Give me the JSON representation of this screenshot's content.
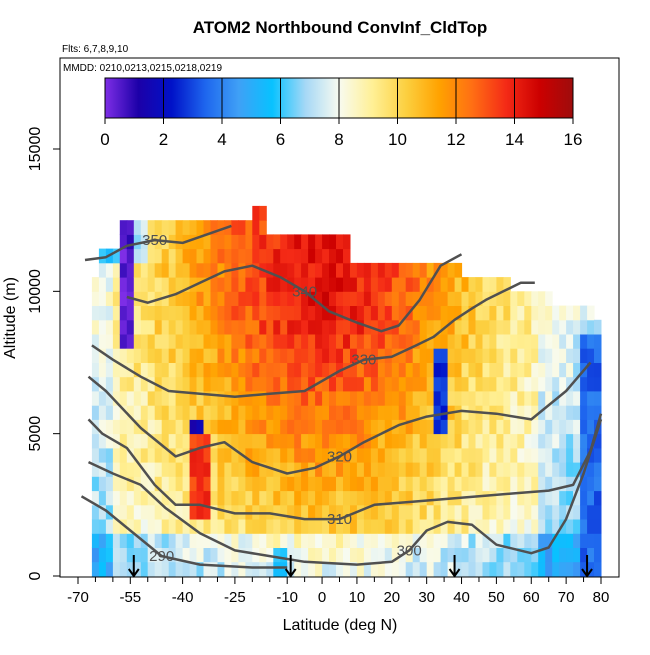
{
  "chart_data": {
    "type": "heatmap",
    "title": "ATOM2 Northbound ConvInf_CldTop",
    "info_lines": [
      "Flts: 6,7,8,9,10",
      "MMDD: 0210,0213,0215,0218,0219"
    ],
    "xlabel": "Latitude (deg N)",
    "ylabel": "Altitude (m)",
    "xlim": [
      -70,
      80
    ],
    "ylim": [
      0,
      17000
    ],
    "x_ticks": [
      -70,
      -55,
      -40,
      -25,
      -10,
      0,
      10,
      20,
      30,
      40,
      50,
      60,
      70,
      80
    ],
    "y_ticks": [
      0,
      5000,
      10000,
      15000
    ],
    "colorbar": {
      "range": [
        0,
        16
      ],
      "ticks": [
        0,
        2,
        4,
        6,
        8,
        10,
        12,
        14,
        16
      ],
      "colors": [
        "#7e2ee6",
        "#1c00a8",
        "#0012c8",
        "#1e66ee",
        "#3fa0f6",
        "#08c2ff",
        "#a6d8f6",
        "#f8fbf0",
        "#fff096",
        "#fcd040",
        "#ffa200",
        "#ff6e14",
        "#f42a16",
        "#cc0000",
        "#9e0c0c"
      ]
    },
    "grid": false,
    "legend": "none",
    "flight_profile_arrows_lat": [
      -54,
      -9,
      38,
      76
    ],
    "contours": [
      {
        "label": "290",
        "points": [
          [
            -69,
            2800
          ],
          [
            -62,
            2300
          ],
          [
            -55,
            1600
          ],
          [
            -46,
            700
          ],
          [
            -35,
            400
          ],
          [
            -20,
            300
          ],
          [
            -10,
            300
          ]
        ]
      },
      {
        "label": "300",
        "points": [
          [
            -67,
            4000
          ],
          [
            -60,
            3600
          ],
          [
            -52,
            3200
          ],
          [
            -45,
            2400
          ],
          [
            -35,
            1500
          ],
          [
            -25,
            900
          ],
          [
            -15,
            700
          ],
          [
            -5,
            500
          ],
          [
            10,
            400
          ],
          [
            20,
            500
          ],
          [
            25,
            900
          ],
          [
            30,
            1600
          ],
          [
            36,
            1900
          ],
          [
            43,
            1800
          ],
          [
            50,
            1100
          ],
          [
            60,
            800
          ],
          [
            65,
            1000
          ],
          [
            70,
            2000
          ],
          [
            75,
            3600
          ],
          [
            80,
            5500
          ]
        ]
      },
      {
        "label": "310",
        "points": [
          [
            -67,
            5500
          ],
          [
            -63,
            5000
          ],
          [
            -56,
            4500
          ],
          [
            -48,
            3200
          ],
          [
            -42,
            2500
          ],
          [
            -35,
            2500
          ],
          [
            -25,
            2200
          ],
          [
            -15,
            2200
          ],
          [
            -5,
            2000
          ],
          [
            5,
            2000
          ],
          [
            15,
            2500
          ],
          [
            25,
            2600
          ],
          [
            35,
            2700
          ],
          [
            45,
            2800
          ],
          [
            55,
            2900
          ],
          [
            65,
            3000
          ],
          [
            72,
            3200
          ],
          [
            77,
            4400
          ],
          [
            80,
            5700
          ]
        ]
      },
      {
        "label": "320",
        "points": [
          [
            -67,
            7000
          ],
          [
            -62,
            6500
          ],
          [
            -52,
            5200
          ],
          [
            -42,
            4200
          ],
          [
            -35,
            4500
          ],
          [
            -28,
            4700
          ],
          [
            -20,
            4000
          ],
          [
            -10,
            3600
          ],
          [
            -2,
            3800
          ],
          [
            5,
            4200
          ],
          [
            12,
            4700
          ],
          [
            22,
            5300
          ],
          [
            30,
            5600
          ],
          [
            40,
            5800
          ],
          [
            50,
            5700
          ],
          [
            60,
            5500
          ],
          [
            70,
            6500
          ],
          [
            77,
            7500
          ]
        ]
      },
      {
        "label": "330",
        "points": [
          [
            -66,
            8100
          ],
          [
            -60,
            7600
          ],
          [
            -52,
            7000
          ],
          [
            -44,
            6500
          ],
          [
            -35,
            6400
          ],
          [
            -25,
            6300
          ],
          [
            -15,
            6400
          ],
          [
            -5,
            6500
          ],
          [
            5,
            7200
          ],
          [
            12,
            7600
          ],
          [
            20,
            7700
          ],
          [
            27,
            8100
          ],
          [
            32,
            8400
          ],
          [
            38,
            9000
          ],
          [
            43,
            9400
          ],
          [
            47,
            9700
          ],
          [
            52,
            10000
          ],
          [
            57,
            10300
          ],
          [
            61,
            10300
          ]
        ]
      },
      {
        "label": "340",
        "points": [
          [
            -56,
            9800
          ],
          [
            -50,
            9600
          ],
          [
            -42,
            9900
          ],
          [
            -35,
            10300
          ],
          [
            -28,
            10700
          ],
          [
            -20,
            10900
          ],
          [
            -12,
            10500
          ],
          [
            -5,
            10000
          ],
          [
            2,
            9300
          ],
          [
            10,
            8900
          ],
          [
            17,
            8600
          ],
          [
            22,
            8800
          ],
          [
            28,
            9700
          ],
          [
            34,
            10900
          ],
          [
            40,
            11300
          ]
        ]
      },
      {
        "label": "350",
        "points": [
          [
            -68,
            11100
          ],
          [
            -62,
            11200
          ],
          [
            -56,
            11600
          ],
          [
            -48,
            11800
          ],
          [
            -40,
            11700
          ],
          [
            -33,
            12000
          ],
          [
            -26,
            12300
          ]
        ]
      }
    ],
    "anomalies": [
      {
        "lat": [
          -58,
          -54
        ],
        "alt": [
          8000,
          12500
        ],
        "level": 0.5
      },
      {
        "lat": [
          -37,
          -34
        ],
        "alt": [
          3000,
          5500
        ],
        "level": 1.5
      },
      {
        "lat": [
          -38,
          -33
        ],
        "alt": [
          2000,
          5000
        ],
        "level": 13.5
      },
      {
        "lat": [
          32,
          35
        ],
        "alt": [
          5000,
          8000
        ],
        "level": 2.5
      },
      {
        "lat": [
          74,
          79
        ],
        "alt": [
          0,
          8500
        ],
        "level": 3.5
      },
      {
        "lat": [
          -13,
          -10
        ],
        "alt": [
          0,
          800
        ],
        "level": 5.5
      }
    ]
  }
}
